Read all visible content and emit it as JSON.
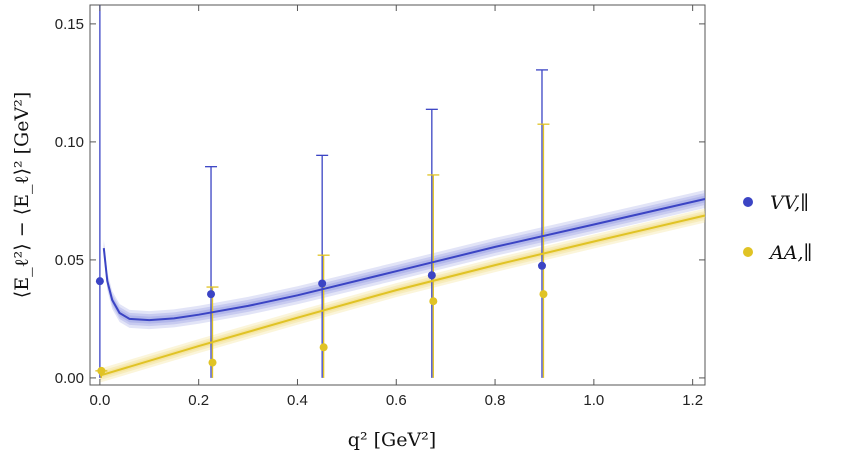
{
  "chart_data": {
    "type": "scatter",
    "xlabel": "q² [GeV²]",
    "ylabel": "⟨E_ℓ²⟩ − ⟨E_ℓ⟩² [GeV²]",
    "xlim": [
      -0.02,
      1.225
    ],
    "ylim": [
      -0.003,
      0.158
    ],
    "x_ticks": [
      "0.0",
      "0.2",
      "0.4",
      "0.6",
      "0.8",
      "1.0",
      "1.2"
    ],
    "y_ticks": [
      "0.00",
      "0.05",
      "0.10",
      "0.15"
    ],
    "grid": false,
    "legend_position": "right",
    "series": [
      {
        "name": "VV,∥",
        "color": "#3b44c4",
        "band_color": "#8a92e0",
        "points": [
          {
            "x": 0.0,
            "y": 0.041,
            "yerr_lo": 0.041,
            "yerr_hi": 0.2
          },
          {
            "x": 0.225,
            "y": 0.0355,
            "yerr_lo": 0.0355,
            "yerr_hi": 0.054
          },
          {
            "x": 0.45,
            "y": 0.04,
            "yerr_lo": 0.04,
            "yerr_hi": 0.0543
          },
          {
            "x": 0.672,
            "y": 0.0435,
            "yerr_lo": 0.0435,
            "yerr_hi": 0.0703
          },
          {
            "x": 0.895,
            "y": 0.0475,
            "yerr_lo": 0.0475,
            "yerr_hi": 0.083
          }
        ],
        "curve": [
          {
            "x": 0.008,
            "y": 0.055
          },
          {
            "x": 0.015,
            "y": 0.041
          },
          {
            "x": 0.025,
            "y": 0.033
          },
          {
            "x": 0.04,
            "y": 0.0275
          },
          {
            "x": 0.06,
            "y": 0.025
          },
          {
            "x": 0.1,
            "y": 0.0245
          },
          {
            "x": 0.15,
            "y": 0.0252
          },
          {
            "x": 0.2,
            "y": 0.0268
          },
          {
            "x": 0.3,
            "y": 0.0305
          },
          {
            "x": 0.4,
            "y": 0.035
          },
          {
            "x": 0.6,
            "y": 0.0452
          },
          {
            "x": 0.8,
            "y": 0.0555
          },
          {
            "x": 1.0,
            "y": 0.065
          },
          {
            "x": 1.225,
            "y": 0.0758
          }
        ]
      },
      {
        "name": "AA,∥",
        "color": "#e0c325",
        "band_color": "#f1de85",
        "points": [
          {
            "x": 0.003,
            "y": 0.003,
            "yerr_lo": 0.003,
            "yerr_hi": 0.0
          },
          {
            "x": 0.228,
            "y": 0.0065,
            "yerr_lo": 0.0065,
            "yerr_hi": 0.032
          },
          {
            "x": 0.453,
            "y": 0.013,
            "yerr_lo": 0.013,
            "yerr_hi": 0.039
          },
          {
            "x": 0.675,
            "y": 0.0325,
            "yerr_lo": 0.0325,
            "yerr_hi": 0.0535
          },
          {
            "x": 0.898,
            "y": 0.0355,
            "yerr_lo": 0.0355,
            "yerr_hi": 0.072
          }
        ],
        "curve": [
          {
            "x": 0.0,
            "y": 0.001
          },
          {
            "x": 0.2,
            "y": 0.0135
          },
          {
            "x": 0.4,
            "y": 0.0255
          },
          {
            "x": 0.6,
            "y": 0.0372
          },
          {
            "x": 0.8,
            "y": 0.0478
          },
          {
            "x": 1.0,
            "y": 0.0578
          },
          {
            "x": 1.225,
            "y": 0.0688
          }
        ]
      }
    ]
  }
}
